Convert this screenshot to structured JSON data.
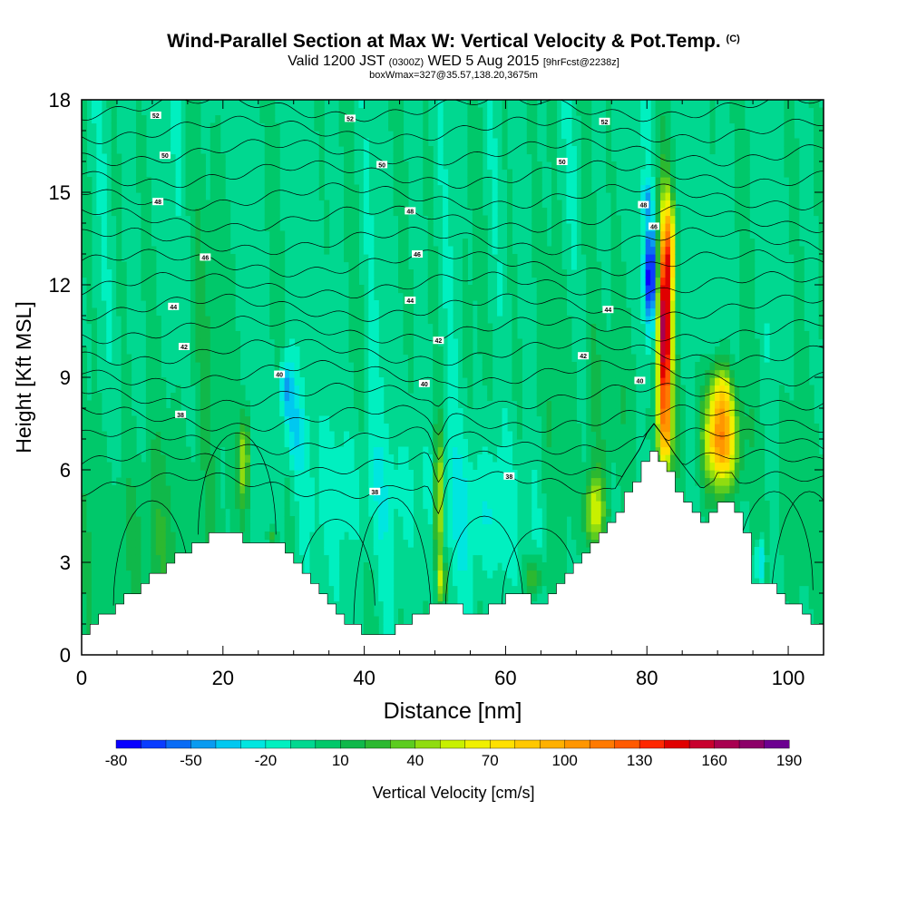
{
  "title": {
    "main": "Wind-Parallel Section at Max W: Vertical Velocity & Pot.Temp.",
    "copyright": "(C)",
    "valid_prefix": "Valid 1200 JST",
    "valid_utc": "(0300Z)",
    "valid_date": "WED 5 Aug 2015",
    "forecast_note": "[9hrFcst@2238z]",
    "box_info": "boxWmax=327@35.57,138.20,3675m"
  },
  "chart_data": {
    "type": "heatmap",
    "xlabel": "Distance [nm]",
    "ylabel": "Height [Kft MSL]",
    "xlim": [
      0,
      105
    ],
    "ylim": [
      0,
      18
    ],
    "x_ticks": [
      0,
      20,
      40,
      60,
      80,
      100
    ],
    "y_ticks": [
      0,
      3,
      6,
      9,
      12,
      15,
      18
    ],
    "colorbar": {
      "label": "Vertical Velocity [cm/s]",
      "tick_labels": [
        -80,
        -50,
        -20,
        10,
        40,
        70,
        100,
        130,
        160,
        190
      ],
      "levels": [
        -80,
        -70,
        -60,
        -50,
        -40,
        -30,
        -20,
        -10,
        0,
        10,
        20,
        30,
        40,
        50,
        60,
        70,
        80,
        90,
        100,
        110,
        120,
        130,
        140,
        150,
        160,
        170,
        180,
        190
      ],
      "colors": [
        "#0a00ff",
        "#0a3cff",
        "#0a6cf5",
        "#0a9bf0",
        "#00c8f0",
        "#00e6e0",
        "#00f0c0",
        "#00d890",
        "#00c86a",
        "#10b84a",
        "#2cb830",
        "#5ccc20",
        "#90dc10",
        "#c8f000",
        "#f0f000",
        "#ffe000",
        "#ffc800",
        "#ffb000",
        "#ff9600",
        "#ff7a00",
        "#ff5a00",
        "#ff2800",
        "#e00000",
        "#c8002e",
        "#a80050",
        "#8c0068",
        "#6c0090"
      ]
    },
    "theta_contour_labels": [
      {
        "label": "52",
        "x": 10.5,
        "y": 17.5
      },
      {
        "label": "52",
        "x": 38,
        "y": 17.4
      },
      {
        "label": "52",
        "x": 74,
        "y": 17.3
      },
      {
        "label": "50",
        "x": 11.8,
        "y": 16.2
      },
      {
        "label": "50",
        "x": 42.5,
        "y": 15.9
      },
      {
        "label": "50",
        "x": 68,
        "y": 16.0
      },
      {
        "label": "48",
        "x": 10.8,
        "y": 14.7
      },
      {
        "label": "48",
        "x": 46.5,
        "y": 14.4
      },
      {
        "label": "48",
        "x": 79.5,
        "y": 14.6
      },
      {
        "label": "46",
        "x": 17.5,
        "y": 12.9
      },
      {
        "label": "46",
        "x": 47.5,
        "y": 13.0
      },
      {
        "label": "46",
        "x": 81,
        "y": 13.9
      },
      {
        "label": "44",
        "x": 13,
        "y": 11.3
      },
      {
        "label": "44",
        "x": 46.5,
        "y": 11.5
      },
      {
        "label": "44",
        "x": 74.5,
        "y": 11.2
      },
      {
        "label": "42",
        "x": 14.5,
        "y": 10.0
      },
      {
        "label": "42",
        "x": 50.5,
        "y": 10.2
      },
      {
        "label": "42",
        "x": 71,
        "y": 9.7
      },
      {
        "label": "40",
        "x": 28,
        "y": 9.1
      },
      {
        "label": "40",
        "x": 48.5,
        "y": 8.8
      },
      {
        "label": "40",
        "x": 79,
        "y": 8.9
      },
      {
        "label": "38",
        "x": 14,
        "y": 7.8
      },
      {
        "label": "38",
        "x": 60.5,
        "y": 5.8
      },
      {
        "label": "38",
        "x": 41.5,
        "y": 5.3
      }
    ]
  }
}
